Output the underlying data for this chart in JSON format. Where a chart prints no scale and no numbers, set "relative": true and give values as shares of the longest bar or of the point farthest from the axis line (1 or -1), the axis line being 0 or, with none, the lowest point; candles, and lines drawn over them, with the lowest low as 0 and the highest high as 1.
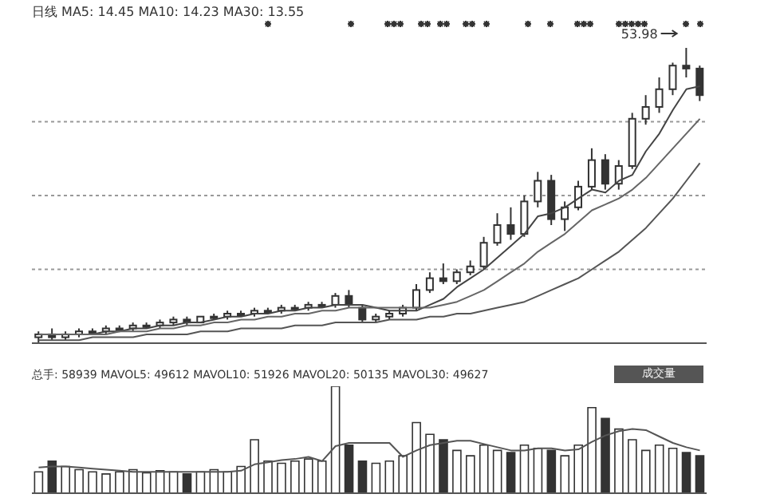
{
  "chart_data": [
    {
      "type": "candlestick",
      "title": "日线",
      "subtitle": "MA5: 14.45 MA10: 14.23 MA30: 13.55",
      "relative": true,
      "grid": true,
      "annotations": [
        "53.98"
      ],
      "color": "#333333",
      "categories": [
        null,
        null,
        null,
        null,
        null,
        null,
        null,
        null,
        null,
        null,
        null,
        null,
        null,
        null,
        null,
        null,
        null,
        null,
        null,
        null,
        null,
        null,
        null,
        null,
        null,
        null,
        null,
        null,
        null,
        null,
        null,
        null,
        null,
        null,
        null,
        null,
        null,
        null,
        null,
        null,
        null,
        null,
        null,
        null,
        null,
        null,
        null,
        null,
        null,
        null
      ],
      "ohlc": [
        [
          0.02,
          0.04,
          0,
          0.03
        ],
        [
          0.03,
          0.05,
          0.01,
          0.02
        ],
        [
          0.02,
          0.04,
          0.01,
          0.03
        ],
        [
          0.03,
          0.05,
          0.02,
          0.04
        ],
        [
          0.04,
          0.05,
          0.03,
          0.04
        ],
        [
          0.04,
          0.06,
          0.03,
          0.05
        ],
        [
          0.05,
          0.06,
          0.04,
          0.05
        ],
        [
          0.05,
          0.07,
          0.04,
          0.06
        ],
        [
          0.06,
          0.07,
          0.05,
          0.06
        ],
        [
          0.06,
          0.08,
          0.05,
          0.07
        ],
        [
          0.07,
          0.09,
          0.06,
          0.08
        ],
        [
          0.08,
          0.09,
          0.06,
          0.07
        ],
        [
          0.07,
          0.09,
          0.07,
          0.09
        ],
        [
          0.09,
          0.1,
          0.08,
          0.09
        ],
        [
          0.09,
          0.11,
          0.08,
          0.1
        ],
        [
          0.1,
          0.11,
          0.09,
          0.1
        ],
        [
          0.1,
          0.12,
          0.09,
          0.11
        ],
        [
          0.11,
          0.12,
          0.1,
          0.11
        ],
        [
          0.11,
          0.13,
          0.1,
          0.12
        ],
        [
          0.12,
          0.13,
          0.11,
          0.12
        ],
        [
          0.12,
          0.14,
          0.11,
          0.13
        ],
        [
          0.13,
          0.14,
          0.12,
          0.13
        ],
        [
          0.13,
          0.17,
          0.12,
          0.16
        ],
        [
          0.16,
          0.18,
          0.12,
          0.13
        ],
        [
          0.12,
          0.13,
          0.07,
          0.08
        ],
        [
          0.08,
          0.1,
          0.07,
          0.09
        ],
        [
          0.09,
          0.11,
          0.08,
          0.1
        ],
        [
          0.1,
          0.13,
          0.09,
          0.12
        ],
        [
          0.12,
          0.2,
          0.11,
          0.18
        ],
        [
          0.18,
          0.24,
          0.17,
          0.22
        ],
        [
          0.22,
          0.27,
          0.2,
          0.21
        ],
        [
          0.21,
          0.25,
          0.2,
          0.24
        ],
        [
          0.24,
          0.28,
          0.23,
          0.26
        ],
        [
          0.26,
          0.36,
          0.25,
          0.34
        ],
        [
          0.34,
          0.44,
          0.33,
          0.4
        ],
        [
          0.4,
          0.46,
          0.35,
          0.37
        ],
        [
          0.37,
          0.5,
          0.36,
          0.48
        ],
        [
          0.48,
          0.58,
          0.46,
          0.55
        ],
        [
          0.55,
          0.57,
          0.4,
          0.42
        ],
        [
          0.42,
          0.48,
          0.38,
          0.46
        ],
        [
          0.46,
          0.55,
          0.45,
          0.53
        ],
        [
          0.53,
          0.66,
          0.52,
          0.62
        ],
        [
          0.62,
          0.64,
          0.52,
          0.54
        ],
        [
          0.54,
          0.62,
          0.52,
          0.6
        ],
        [
          0.6,
          0.78,
          0.59,
          0.76
        ],
        [
          0.76,
          0.84,
          0.74,
          0.8
        ],
        [
          0.8,
          0.9,
          0.78,
          0.86
        ],
        [
          0.86,
          0.95,
          0.84,
          0.94
        ],
        [
          0.94,
          1,
          0.9,
          0.93
        ],
        [
          0.93,
          0.94,
          0.82,
          0.84
        ]
      ],
      "series": [
        {
          "type": "line",
          "color": "#444444",
          "values": [
            0.03,
            0.03,
            0.03,
            0.03,
            0.03,
            0.04,
            0.04,
            0.05,
            0.05,
            0.06,
            0.06,
            0.07,
            0.07,
            0.08,
            0.09,
            0.09,
            0.1,
            0.1,
            0.11,
            0.11,
            0.12,
            0.12,
            0.13,
            0.13,
            0.13,
            0.12,
            0.11,
            0.11,
            0.11,
            0.13,
            0.15,
            0.19,
            0.22,
            0.25,
            0.29,
            0.33,
            0.37,
            0.43,
            0.44,
            0.46,
            0.49,
            0.52,
            0.51,
            0.55,
            0.57,
            0.65,
            0.71,
            0.79,
            0.86,
            0.87
          ]
        },
        {
          "type": "line",
          "color": "#666666",
          "values": [
            0.03,
            0.03,
            0.03,
            0.03,
            0.03,
            0.03,
            0.04,
            0.04,
            0.04,
            0.05,
            0.05,
            0.06,
            0.06,
            0.07,
            0.07,
            0.08,
            0.08,
            0.09,
            0.09,
            0.1,
            0.1,
            0.11,
            0.11,
            0.12,
            0.12,
            0.12,
            0.12,
            0.12,
            0.12,
            0.12,
            0.13,
            0.14,
            0.16,
            0.18,
            0.21,
            0.24,
            0.27,
            0.31,
            0.34,
            0.37,
            0.41,
            0.45,
            0.47,
            0.49,
            0.52,
            0.56,
            0.61,
            0.66,
            0.71,
            0.76
          ]
        },
        {
          "type": "line",
          "color": "#555555",
          "values": [
            0.01,
            0.01,
            0.01,
            0.01,
            0.02,
            0.02,
            0.02,
            0.02,
            0.03,
            0.03,
            0.03,
            0.03,
            0.04,
            0.04,
            0.04,
            0.05,
            0.05,
            0.05,
            0.05,
            0.06,
            0.06,
            0.06,
            0.07,
            0.07,
            0.07,
            0.07,
            0.08,
            0.08,
            0.08,
            0.09,
            0.09,
            0.1,
            0.1,
            0.11,
            0.12,
            0.13,
            0.14,
            0.16,
            0.18,
            0.2,
            0.22,
            0.25,
            0.28,
            0.31,
            0.35,
            0.39,
            0.44,
            0.49,
            0.55,
            0.61
          ]
        }
      ]
    },
    {
      "type": "bar",
      "title": "总手: 58939 MAVOL5: 49612 MAVOL10: 51926 MAVOL20: 50135 MAVOL30: 49627",
      "relative": true,
      "annotations": [
        "成交量"
      ],
      "categories": [
        null,
        null,
        null,
        null,
        null,
        null,
        null,
        null,
        null,
        null,
        null,
        null,
        null,
        null,
        null,
        null,
        null,
        null,
        null,
        null,
        null,
        null,
        null,
        null,
        null,
        null,
        null,
        null,
        null,
        null,
        null,
        null,
        null,
        null,
        null,
        null,
        null,
        null,
        null,
        null,
        null,
        null,
        null,
        null,
        null,
        null,
        null,
        null,
        null,
        null
      ],
      "series": [
        {
          "type": "bar",
          "colors": [
            "#ffffff",
            "#333333",
            "#ffffff",
            "#ffffff",
            "#ffffff",
            "#ffffff",
            "#ffffff",
            "#ffffff",
            "#ffffff",
            "#ffffff",
            "#ffffff",
            "#333333",
            "#ffffff",
            "#ffffff",
            "#ffffff",
            "#ffffff",
            "#ffffff",
            "#ffffff",
            "#ffffff",
            "#ffffff",
            "#ffffff",
            "#ffffff",
            "#ffffff",
            "#333333",
            "#333333",
            "#ffffff",
            "#ffffff",
            "#ffffff",
            "#ffffff",
            "#ffffff",
            "#333333",
            "#ffffff",
            "#ffffff",
            "#ffffff",
            "#ffffff",
            "#333333",
            "#ffffff",
            "#ffffff",
            "#333333",
            "#ffffff",
            "#ffffff",
            "#ffffff",
            "#333333",
            "#ffffff",
            "#ffffff",
            "#ffffff",
            "#ffffff",
            "#ffffff",
            "#333333",
            "#333333"
          ],
          "values": [
            0.2,
            0.3,
            0.25,
            0.22,
            0.2,
            0.18,
            0.2,
            0.22,
            0.19,
            0.21,
            0.2,
            0.18,
            0.2,
            0.22,
            0.2,
            0.25,
            0.5,
            0.3,
            0.28,
            0.3,
            0.32,
            0.3,
            1,
            0.45,
            0.3,
            0.28,
            0.3,
            0.35,
            0.66,
            0.55,
            0.5,
            0.4,
            0.35,
            0.45,
            0.4,
            0.38,
            0.45,
            0.42,
            0.4,
            0.35,
            0.45,
            0.8,
            0.7,
            0.6,
            0.5,
            0.4,
            0.45,
            0.42,
            0.38,
            0.35
          ]
        },
        {
          "type": "line",
          "color": "#555555",
          "values": [
            0.24,
            0.25,
            0.25,
            0.24,
            0.23,
            0.22,
            0.21,
            0.2,
            0.2,
            0.2,
            0.2,
            0.2,
            0.2,
            0.2,
            0.2,
            0.21,
            0.27,
            0.29,
            0.31,
            0.32,
            0.34,
            0.3,
            0.44,
            0.47,
            0.47,
            0.47,
            0.47,
            0.34,
            0.4,
            0.45,
            0.47,
            0.49,
            0.49,
            0.46,
            0.43,
            0.4,
            0.4,
            0.42,
            0.42,
            0.4,
            0.41,
            0.48,
            0.54,
            0.58,
            0.6,
            0.59,
            0.53,
            0.47,
            0.43,
            0.4
          ]
        }
      ]
    }
  ]
}
